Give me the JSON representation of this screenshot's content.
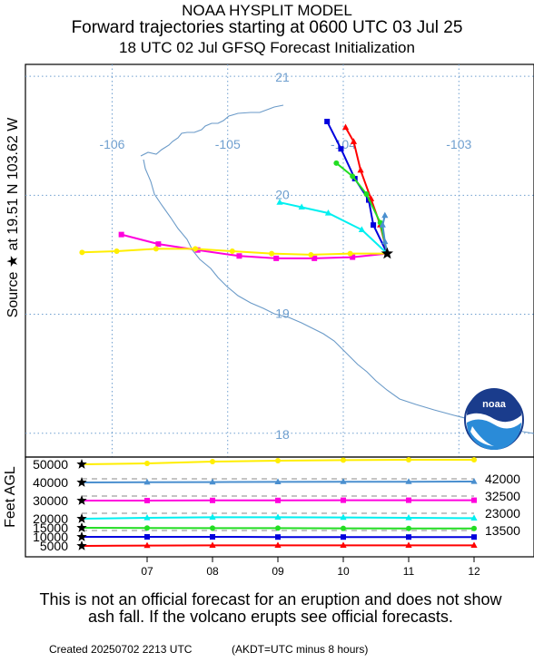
{
  "header": {
    "line1": "NOAA HYSPLIT MODEL",
    "line2": "Forward trajectories starting at 0600 UTC 03 Jul 25",
    "line3": "18 UTC 02 Jul    GFSQ  Forecast Initialization"
  },
  "source_label": "Source ★  at   19.51 N  103.62 W",
  "height_axis_label": "Feet AGL",
  "logo_text": "noaa",
  "disclaimer": "This is not an official forecast for an eruption and does not show ash fall. If the volcano erupts see official forecasts.",
  "created": "Created 20250702 2213 UTC",
  "akdt_note": "(AKDT=UTC minus 8 hours)",
  "colors": {
    "red": "#ff0000",
    "blue": "#0000dd",
    "green": "#22dd22",
    "cyan": "#00f0f0",
    "magenta": "#ff00dd",
    "yellow": "#ffee00",
    "steel": "#4a8fcf",
    "grid": "#6f9fcf",
    "coast": "#6a9ac8"
  },
  "chart_data": [
    {
      "type": "line",
      "description_role": "map",
      "lon_ticks": [
        "-106",
        "-105",
        "-104",
        "-103"
      ],
      "lat_ticks": [
        "21",
        "20",
        "19",
        "18"
      ],
      "lon_range": [
        -106.75,
        -102.35
      ],
      "lat_range": [
        17.8,
        21.1
      ],
      "source": {
        "lat": 19.51,
        "lon": -103.62
      },
      "series": [
        {
          "color": "blue",
          "marker": "square",
          "points": [
            [
              -103.62,
              19.51
            ],
            [
              -103.74,
              19.75
            ],
            [
              -103.78,
              19.96
            ],
            [
              -103.9,
              20.14
            ],
            [
              -104.02,
              20.39
            ],
            [
              -104.14,
              20.62
            ]
          ]
        },
        {
          "color": "red",
          "marker": "triangle",
          "points": [
            [
              -103.62,
              19.51
            ],
            [
              -103.68,
              19.75
            ],
            [
              -103.76,
              19.97
            ],
            [
              -103.85,
              20.21
            ],
            [
              -103.91,
              20.45
            ],
            [
              -103.98,
              20.57
            ]
          ]
        },
        {
          "color": "green",
          "marker": "circle",
          "points": [
            [
              -103.62,
              19.51
            ],
            [
              -103.68,
              19.77
            ],
            [
              -103.8,
              20.01
            ],
            [
              -103.92,
              20.16
            ],
            [
              -104.06,
              20.27
            ]
          ]
        },
        {
          "color": "cyan",
          "marker": "triangle",
          "points": [
            [
              -103.62,
              19.51
            ],
            [
              -103.84,
              19.71
            ],
            [
              -104.13,
              19.85
            ],
            [
              -104.36,
              19.9
            ],
            [
              -104.55,
              19.94
            ]
          ]
        },
        {
          "color": "steel",
          "marker": "triangle",
          "points": [
            [
              -103.62,
              19.51
            ],
            [
              -103.64,
              19.61
            ],
            [
              -103.66,
              19.75
            ],
            [
              -103.64,
              19.83
            ]
          ]
        },
        {
          "color": "magenta",
          "marker": "square",
          "points": [
            [
              -103.62,
              19.51
            ],
            [
              -103.92,
              19.48
            ],
            [
              -104.25,
              19.47
            ],
            [
              -104.58,
              19.47
            ],
            [
              -104.9,
              19.49
            ],
            [
              -105.26,
              19.54
            ],
            [
              -105.6,
              19.59
            ],
            [
              -105.92,
              19.67
            ]
          ]
        },
        {
          "color": "yellow",
          "marker": "circle",
          "points": [
            [
              -103.62,
              19.51
            ],
            [
              -103.94,
              19.51
            ],
            [
              -104.28,
              19.5
            ],
            [
              -104.62,
              19.51
            ],
            [
              -104.96,
              19.53
            ],
            [
              -105.28,
              19.55
            ],
            [
              -105.62,
              19.55
            ],
            [
              -105.96,
              19.53
            ],
            [
              -106.26,
              19.52
            ]
          ]
        }
      ]
    },
    {
      "type": "line",
      "description_role": "height",
      "x_ticks": [
        "07",
        "08",
        "09",
        "10",
        "11",
        "12"
      ],
      "x_range": [
        6,
        12
      ],
      "y_ticks": [
        "50000",
        "40000",
        "30000",
        "20000",
        "15000",
        "10000",
        "5000"
      ],
      "y_range": [
        0,
        53000
      ],
      "right_labels": [
        "42000",
        "32500",
        "23000",
        "13500"
      ],
      "series": [
        {
          "color": "yellow",
          "marker": "circle",
          "x": [
            6,
            7,
            8,
            9,
            10,
            11,
            12
          ],
          "y": [
            50000,
            50500,
            51500,
            52000,
            52300,
            52500,
            52500
          ]
        },
        {
          "color": "steel",
          "marker": "triangle",
          "x": [
            6,
            7,
            8,
            9,
            10,
            11,
            12
          ],
          "y": [
            40000,
            40100,
            40200,
            40300,
            40400,
            40400,
            40500
          ]
        },
        {
          "color": "magenta",
          "marker": "square",
          "x": [
            6,
            7,
            8,
            9,
            10,
            11,
            12
          ],
          "y": [
            30000,
            30000,
            30100,
            30100,
            30200,
            30200,
            30200
          ]
        },
        {
          "color": "cyan",
          "marker": "triangle",
          "x": [
            6,
            7,
            8,
            9,
            10,
            11,
            12
          ],
          "y": [
            20000,
            20500,
            20800,
            20800,
            20700,
            20500,
            20300
          ]
        },
        {
          "color": "green",
          "marker": "circle",
          "x": [
            6,
            7,
            8,
            9,
            10,
            11,
            12
          ],
          "y": [
            15000,
            14900,
            14800,
            14800,
            14700,
            14600,
            14600
          ]
        },
        {
          "color": "blue",
          "marker": "square",
          "x": [
            6,
            7,
            8,
            9,
            10,
            11,
            12
          ],
          "y": [
            10000,
            10000,
            10000,
            9900,
            9900,
            9900,
            9900
          ]
        },
        {
          "color": "red",
          "marker": "triangle",
          "x": [
            6,
            7,
            8,
            9,
            10,
            11,
            12
          ],
          "y": [
            5000,
            5200,
            5300,
            5300,
            5300,
            5300,
            5300
          ]
        }
      ]
    }
  ]
}
